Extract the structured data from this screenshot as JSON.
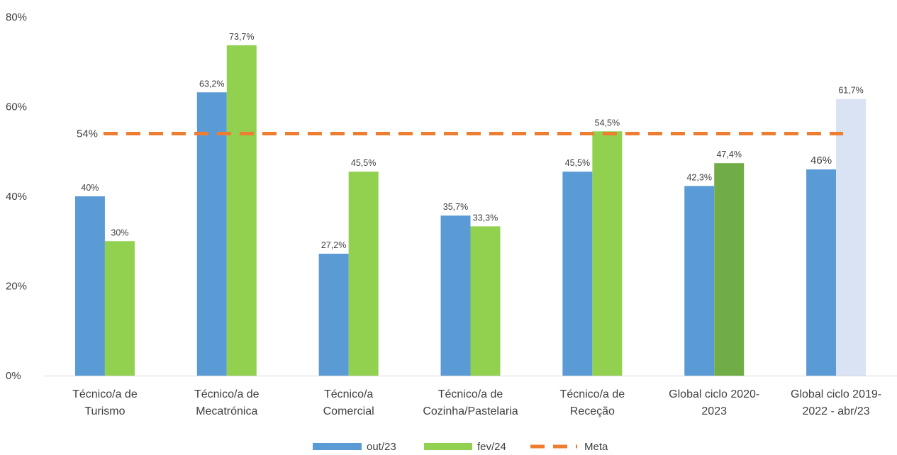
{
  "chart_data": {
    "type": "bar",
    "categories": [
      [
        "Técnico/a de",
        "Turismo"
      ],
      [
        "Técnico/a de",
        "Mecatrónica"
      ],
      [
        "Técnico/a",
        "Comercial"
      ],
      [
        "Técnico/a de",
        "Cozinha/Pastelaria"
      ],
      [
        "Técnico/a de",
        "Receção"
      ],
      [
        "Global ciclo 2020-",
        "2023"
      ],
      [
        "Global ciclo 2019-",
        "2022 - abr/23"
      ]
    ],
    "series": [
      {
        "name": "out/23",
        "color": "#5b9bd5",
        "values": [
          40,
          63.2,
          27.2,
          35.7,
          45.5,
          42.3,
          46
        ],
        "labels": [
          "40%",
          "63,2%",
          "27,2%",
          "35,7%",
          "45,5%",
          "42,3%",
          "46%"
        ]
      },
      {
        "name": "fev/24",
        "color": "#92d050",
        "point_colors": [
          null,
          null,
          null,
          null,
          null,
          "#70ad47",
          "#dae3f3"
        ],
        "values": [
          30,
          73.7,
          45.5,
          33.3,
          54.5,
          47.4,
          61.7
        ],
        "labels": [
          "30%",
          "73,7%",
          "45,5%",
          "33,3%",
          "54,5%",
          "47,4%",
          "61,7%"
        ]
      }
    ],
    "target_line": {
      "name": "Meta",
      "value": 54,
      "label": "54%",
      "color": "#ed7d31",
      "style": "dashed"
    },
    "ylim": [
      0,
      80
    ],
    "yticks": [
      0,
      20,
      40,
      60,
      80
    ],
    "ytick_labels": [
      "0%",
      "20%",
      "40%",
      "60%",
      "80%"
    ],
    "legend": {
      "placement": "bottom",
      "items": [
        {
          "label": "out/23",
          "kind": "bar",
          "color": "#5b9bd5"
        },
        {
          "label": "fev/24",
          "kind": "bar",
          "color": "#92d050"
        },
        {
          "label": "Meta",
          "kind": "dashed-line",
          "color": "#ed7d31"
        }
      ]
    },
    "grid": false
  }
}
